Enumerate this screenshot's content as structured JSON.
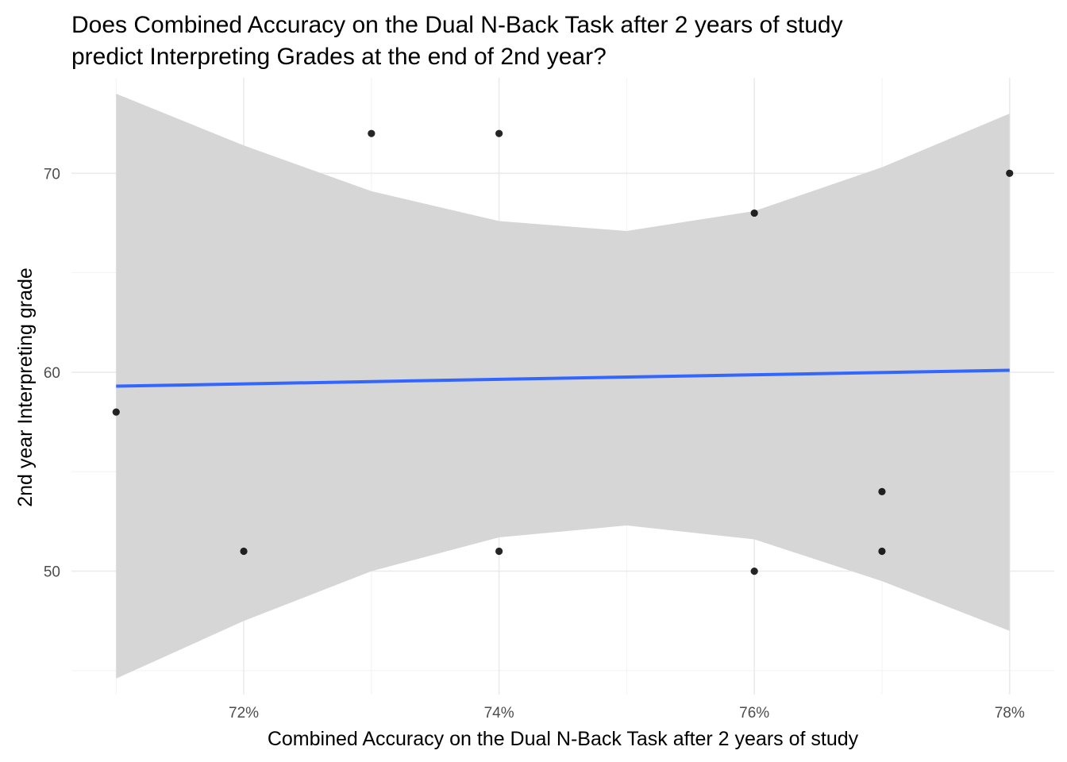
{
  "chart_data": {
    "type": "scatter",
    "title_lines": [
      "Does Combined Accuracy on the Dual N-Back Task after 2 years of study",
      "predict Interpreting Grades at the end of 2nd year?"
    ],
    "xlabel": "Combined Accuracy on the Dual N-Back Task after 2 years of study",
    "ylabel": "2nd year Interpreting grade",
    "xlim": [
      0.7065,
      0.7835
    ],
    "ylim": [
      43.8,
      74.8
    ],
    "x_ticks": [
      0.72,
      0.74,
      0.76,
      0.78
    ],
    "x_tick_labels": [
      "72%",
      "74%",
      "76%",
      "78%"
    ],
    "y_ticks": [
      50,
      60,
      70
    ],
    "y_tick_labels": [
      "50",
      "60",
      "70"
    ],
    "x_minor_ticks": [
      0.71,
      0.73,
      0.75,
      0.77
    ],
    "y_minor_ticks": [
      45,
      55,
      65
    ],
    "grid": true,
    "points": [
      {
        "x": 0.71,
        "y": 58
      },
      {
        "x": 0.72,
        "y": 51
      },
      {
        "x": 0.73,
        "y": 72
      },
      {
        "x": 0.74,
        "y": 72
      },
      {
        "x": 0.74,
        "y": 51
      },
      {
        "x": 0.76,
        "y": 68
      },
      {
        "x": 0.76,
        "y": 50
      },
      {
        "x": 0.77,
        "y": 54
      },
      {
        "x": 0.77,
        "y": 51
      },
      {
        "x": 0.78,
        "y": 70
      }
    ],
    "fit_line": {
      "x": [
        0.71,
        0.78
      ],
      "y": [
        59.3,
        60.1
      ]
    },
    "confidence_band": {
      "x": [
        0.71,
        0.72,
        0.73,
        0.74,
        0.75,
        0.76,
        0.77,
        0.78
      ],
      "upper": [
        74.0,
        71.4,
        69.1,
        67.6,
        67.1,
        68.1,
        70.3,
        73.0
      ],
      "lower": [
        44.6,
        47.5,
        50.0,
        51.7,
        52.3,
        51.6,
        49.5,
        47.0
      ]
    },
    "colors": {
      "points": "#000000",
      "fit_line": "#3366ff",
      "band": "#d6d6d6"
    }
  }
}
